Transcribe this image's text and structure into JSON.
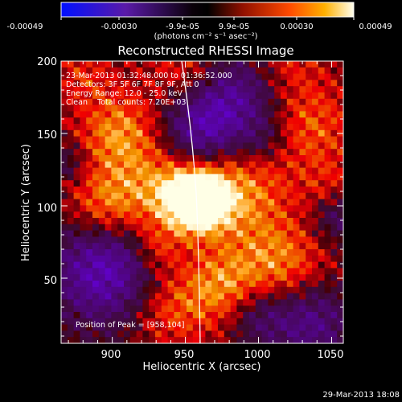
{
  "colorbar": {
    "tick_labels": [
      "-0.00049",
      "-0.00030",
      "-9.9e-05",
      "9.9e-05",
      "0.00030",
      "0.00049"
    ],
    "unit_label": "(photons cm⁻² s⁻¹ asec⁻²)"
  },
  "title": "Reconstructed RHESSI Image",
  "annotations": {
    "time_range": "23-Mar-2013 01:32:48.000 to 01:36:52.000",
    "detectors": "Detectors: 3F 5F 6F 7F 8F 9F, Att 0",
    "energy_range": "Energy Range: 12.0 - 25.0 keV",
    "clean_counts": "Clean    Total counts: 7.20E+03",
    "peak_position": "Position of Peak = [958,104]"
  },
  "axes": {
    "xlabel": "Heliocentric X (arcsec)",
    "ylabel": "Heliocentric Y (arcsec)",
    "x_ticks": [
      "900",
      "950",
      "1000",
      "1050"
    ],
    "y_ticks": [
      "50",
      "100",
      "150",
      "200"
    ],
    "x_range": [
      865,
      1058
    ],
    "y_range": [
      5,
      200
    ]
  },
  "timestamp": "29-Mar-2013 18:08",
  "colors": {
    "negative": "#2020ff",
    "zero": "#000000",
    "positive_mid": "#ff2000",
    "positive_high": "#ffffff"
  }
}
